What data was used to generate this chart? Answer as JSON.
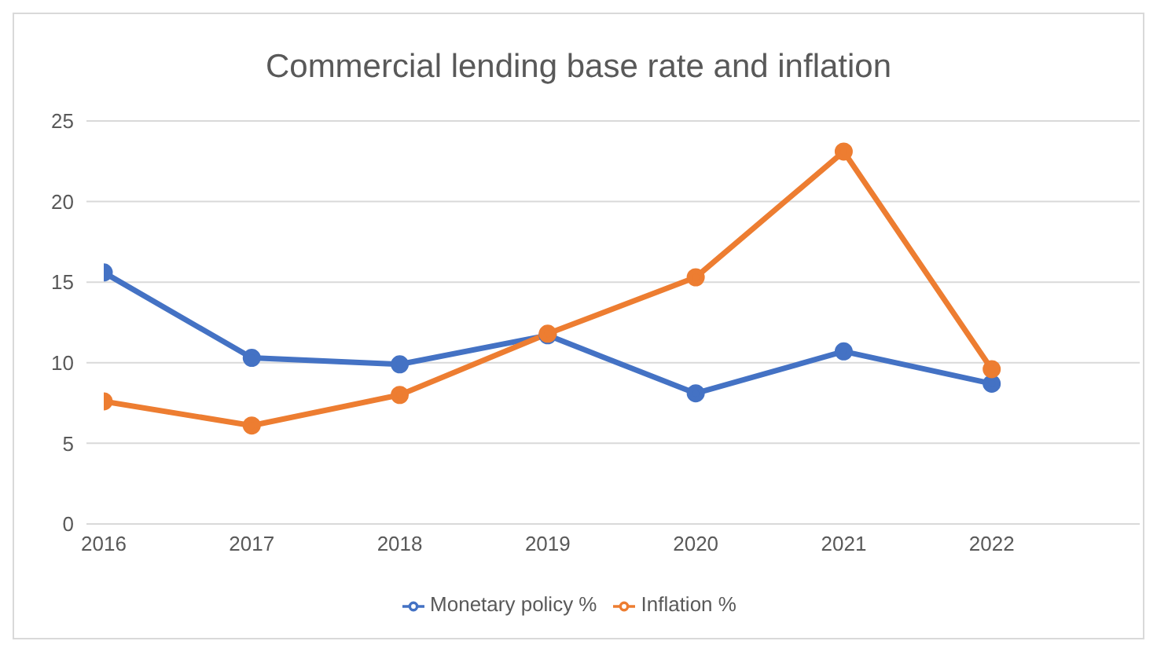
{
  "chart_data": {
    "type": "line",
    "title": "Commercial lending base rate and inflation",
    "categories": [
      "2016",
      "2017",
      "2018",
      "2019",
      "2020",
      "2021",
      "2022",
      null
    ],
    "series": [
      {
        "name": "Monetary policy %",
        "color": "#4472c4",
        "values": [
          15.6,
          10.3,
          9.9,
          11.7,
          8.1,
          10.7,
          8.7,
          null
        ]
      },
      {
        "name": "Inflation %",
        "color": "#ed7d31",
        "values": [
          7.6,
          6.1,
          8.0,
          11.8,
          15.3,
          23.1,
          9.6,
          null
        ]
      }
    ],
    "ylim": [
      0,
      25
    ],
    "yticks": [
      0,
      5,
      10,
      15,
      20,
      25
    ],
    "grid": "y",
    "legend": "bottom",
    "marker": "circle",
    "line_style": "solid"
  }
}
